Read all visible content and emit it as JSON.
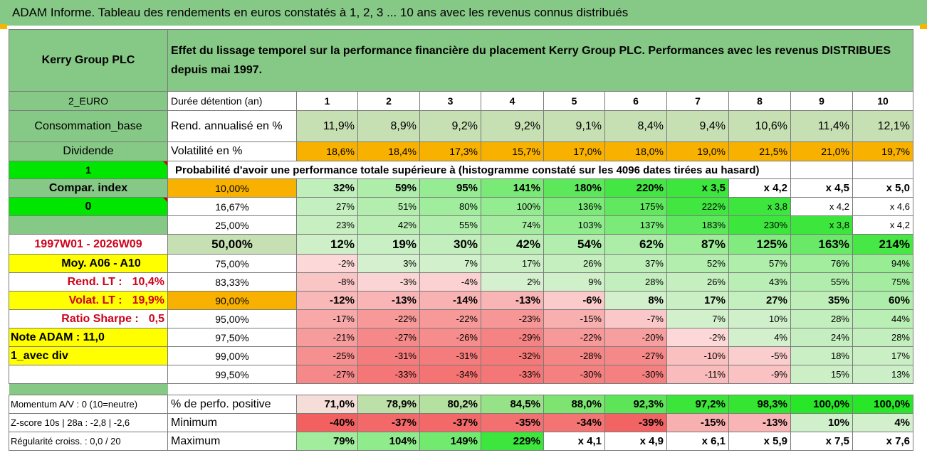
{
  "title": "ADAM Informe. Tableau des rendements en euros constatés à 1, 2, 3 ... 10 ans avec les revenus connus distribués",
  "company": "Kerry Group PLC",
  "description": "Effet du lissage temporel sur la performance financière du placement Kerry Group PLC. Performances avec les revenus DISTRIBUES depuis mai 1997.",
  "side": {
    "currency": "2_EURO",
    "sector": "Consommation_base",
    "dividend": "Dividende",
    "one": "1",
    "compar": "Compar. index",
    "zero": "0",
    "period": "1997W01 - 2026W09",
    "moy": "Moy. A06 - A10",
    "rend_lt_label": "Rend. LT :",
    "rend_lt_value": "10,4%",
    "volat_lt_label": "Volat. LT :",
    "volat_lt_value": "19,9%",
    "sharpe_label": "Ratio Sharpe :",
    "sharpe_value": "0,5",
    "note": "Note ADAM : 11,0",
    "avec_div": "1_avec div"
  },
  "duree_label": "Durée détention (an)",
  "years": [
    "1",
    "2",
    "3",
    "4",
    "5",
    "6",
    "7",
    "8",
    "9",
    "10"
  ],
  "rend_label": "Rend. annualisé en %",
  "rend": [
    "11,9%",
    "8,9%",
    "9,2%",
    "9,2%",
    "9,1%",
    "8,4%",
    "9,4%",
    "10,6%",
    "11,4%",
    "12,1%"
  ],
  "vol_label": "Volatilité en %",
  "vol": [
    "18,6%",
    "18,4%",
    "17,3%",
    "15,7%",
    "17,0%",
    "18,0%",
    "19,0%",
    "21,5%",
    "21,0%",
    "19,7%"
  ],
  "prob_label": "Probabilité d'avoir une performance totale supérieure à (histogramme constaté sur les 4096 dates tirées au hasard)",
  "quantiles": [
    {
      "q": "10,00%",
      "v": [
        "32%",
        "59%",
        "95%",
        "141%",
        "180%",
        "220%",
        "x 3,5",
        "x 4,2",
        "x 4,5",
        "x 5,0"
      ]
    },
    {
      "q": "16,67%",
      "v": [
        "27%",
        "51%",
        "80%",
        "100%",
        "136%",
        "175%",
        "222%",
        "x 3,8",
        "x 4,2",
        "x 4,6"
      ]
    },
    {
      "q": "25,00%",
      "v": [
        "23%",
        "42%",
        "55%",
        "74%",
        "103%",
        "137%",
        "183%",
        "230%",
        "x 3,8",
        "x 4,2"
      ]
    },
    {
      "q": "50,00%",
      "v": [
        "12%",
        "19%",
        "30%",
        "42%",
        "54%",
        "62%",
        "87%",
        "125%",
        "163%",
        "214%"
      ]
    },
    {
      "q": "75,00%",
      "v": [
        "-2%",
        "3%",
        "7%",
        "17%",
        "26%",
        "37%",
        "52%",
        "57%",
        "76%",
        "94%"
      ]
    },
    {
      "q": "83,33%",
      "v": [
        "-8%",
        "-3%",
        "-4%",
        "2%",
        "9%",
        "28%",
        "26%",
        "43%",
        "55%",
        "75%"
      ]
    },
    {
      "q": "90,00%",
      "v": [
        "-12%",
        "-13%",
        "-14%",
        "-13%",
        "-6%",
        "8%",
        "17%",
        "27%",
        "35%",
        "60%"
      ]
    },
    {
      "q": "95,00%",
      "v": [
        "-17%",
        "-22%",
        "-22%",
        "-23%",
        "-15%",
        "-7%",
        "7%",
        "10%",
        "28%",
        "44%"
      ]
    },
    {
      "q": "97,50%",
      "v": [
        "-21%",
        "-27%",
        "-26%",
        "-29%",
        "-22%",
        "-20%",
        "-2%",
        "4%",
        "24%",
        "28%"
      ]
    },
    {
      "q": "99,00%",
      "v": [
        "-25%",
        "-31%",
        "-31%",
        "-32%",
        "-28%",
        "-27%",
        "-10%",
        "-5%",
        "18%",
        "17%"
      ]
    },
    {
      "q": "99,50%",
      "v": [
        "-27%",
        "-33%",
        "-34%",
        "-33%",
        "-30%",
        "-30%",
        "-11%",
        "-9%",
        "15%",
        "13%"
      ]
    }
  ],
  "bottom": [
    {
      "side": "Momentum A/V : 0 (10=neutre)",
      "label": "% de perfo. positive",
      "v": [
        "71,0%",
        "78,9%",
        "80,2%",
        "84,5%",
        "88,0%",
        "92,3%",
        "97,2%",
        "98,3%",
        "100,0%",
        "100,0%"
      ]
    },
    {
      "side": "Z-score 10s | 28a : -2,8 | -2,6",
      "label": "Minimum",
      "v": [
        "-40%",
        "-37%",
        "-37%",
        "-35%",
        "-34%",
        "-39%",
        "-15%",
        "-13%",
        "10%",
        "4%"
      ]
    },
    {
      "side": "Régularité croiss. : 0,0 / 20",
      "label": "Maximum",
      "v": [
        "79%",
        "104%",
        "149%",
        "229%",
        "x 4,1",
        "x 4,9",
        "x 6,1",
        "x 5,9",
        "x 7,5",
        "x 7,6"
      ]
    }
  ],
  "colors": {
    "header_green": "#86c885",
    "light_green": "#c6dfb3",
    "orange": "#f9b100",
    "bright_green": "#00e600",
    "yellow": "#ffff00"
  }
}
